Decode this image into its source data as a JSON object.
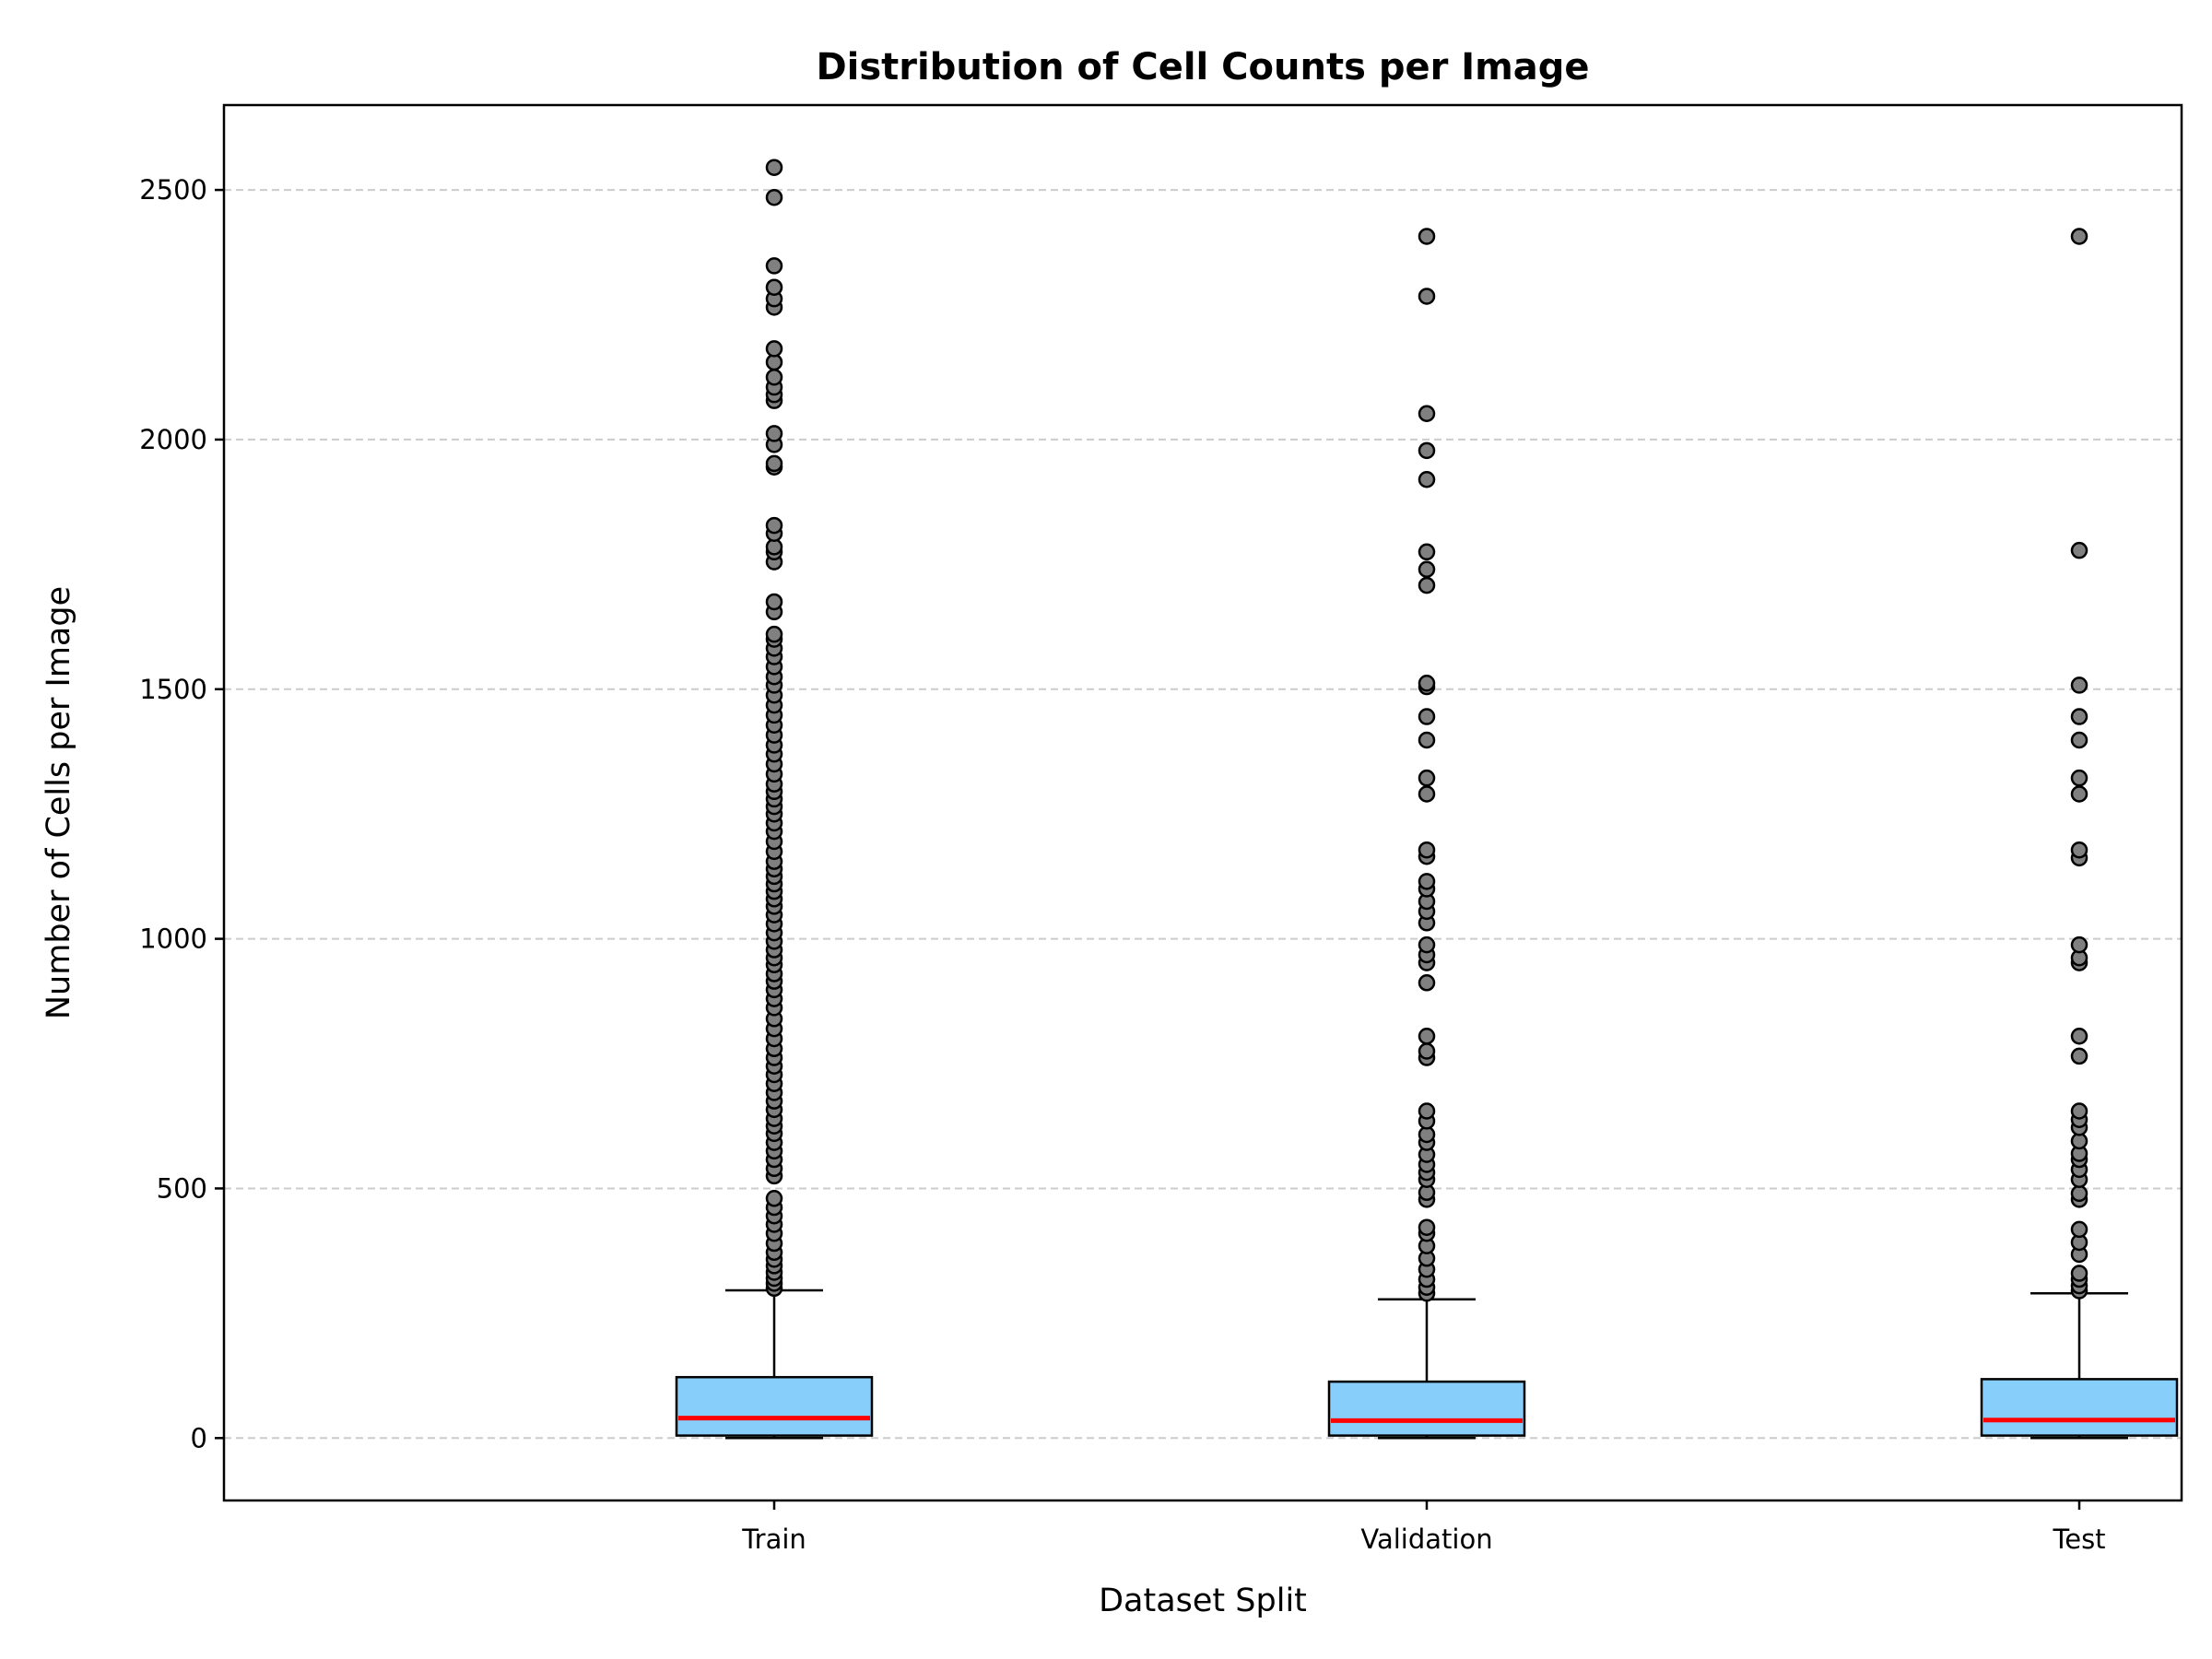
{
  "chart_data": {
    "type": "box",
    "title": "Distribution of Cell Counts per Image",
    "xlabel": "Dataset Split",
    "ylabel": "Number of Cells per Image",
    "ylim": [
      -125,
      2670
    ],
    "yticks": [
      0,
      500,
      1000,
      1500,
      2000,
      2500
    ],
    "grid": "y-dashed",
    "colors": {
      "box_fill": "#87CEFA",
      "median": "#FF0000",
      "outlier_fill": "#808080",
      "edge": "#000000",
      "grid": "#cccccc"
    },
    "categories": [
      "Train",
      "Validation",
      "Test"
    ],
    "series": [
      {
        "category": "Train",
        "whisker_low": 0,
        "q1": 5,
        "median": 40,
        "q3": 122,
        "whisker_high": 296,
        "outliers": [
          300,
          310,
          320,
          332,
          345,
          358,
          372,
          390,
          410,
          428,
          445,
          462,
          480,
          525,
          540,
          558,
          575,
          592,
          610,
          625,
          640,
          658,
          675,
          692,
          710,
          728,
          745,
          762,
          780,
          800,
          820,
          840,
          862,
          880,
          898,
          915,
          930,
          948,
          962,
          978,
          995,
          1012,
          1030,
          1048,
          1065,
          1080,
          1095,
          1110,
          1125,
          1140,
          1155,
          1175,
          1195,
          1215,
          1232,
          1250,
          1265,
          1280,
          1295,
          1310,
          1330,
          1350,
          1370,
          1388,
          1408,
          1428,
          1448,
          1468,
          1488,
          1508,
          1525,
          1545,
          1565,
          1582,
          1600,
          1610,
          1655,
          1675,
          1755,
          1775,
          1785,
          1812,
          1828,
          1945,
          1952,
          1990,
          2012,
          2078,
          2090,
          2105,
          2125,
          2155,
          2182,
          2265,
          2282,
          2305,
          2348,
          2485,
          2545
        ]
      },
      {
        "category": "Validation",
        "whisker_low": 0,
        "q1": 5,
        "median": 35,
        "q3": 113,
        "whisker_high": 278,
        "outliers": [
          290,
          302,
          318,
          338,
          360,
          385,
          410,
          422,
          478,
          492,
          518,
          532,
          548,
          568,
          592,
          608,
          635,
          655,
          762,
          775,
          805,
          912,
          952,
          968,
          988,
          1032,
          1055,
          1075,
          1100,
          1115,
          1165,
          1178,
          1290,
          1322,
          1398,
          1445,
          1505,
          1512,
          1708,
          1740,
          1775,
          1920,
          1978,
          2052,
          2287,
          2407
        ]
      },
      {
        "category": "Test",
        "whisker_low": 0,
        "q1": 5,
        "median": 36,
        "q3": 118,
        "whisker_high": 290,
        "outliers": [
          295,
          305,
          318,
          330,
          368,
          392,
          418,
          478,
          490,
          518,
          538,
          558,
          570,
          595,
          622,
          638,
          655,
          765,
          805,
          952,
          962,
          988,
          1162,
          1178,
          1290,
          1322,
          1398,
          1445,
          1508,
          1778,
          2407
        ]
      }
    ]
  }
}
